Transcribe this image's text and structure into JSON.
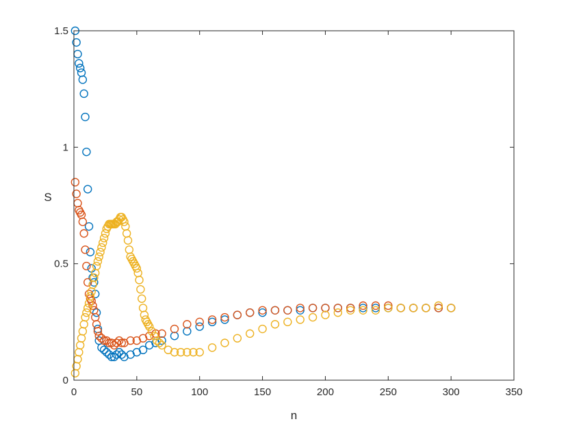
{
  "chart_data": {
    "type": "scatter",
    "title": "",
    "xlabel": "n",
    "ylabel": "S",
    "xlim": [
      0,
      350
    ],
    "ylim": [
      0,
      1.5
    ],
    "xticks": [
      0,
      50,
      100,
      150,
      200,
      250,
      300,
      350
    ],
    "xtick_labels": [
      "0",
      "50",
      "100",
      "150",
      "200",
      "250",
      "300",
      "350"
    ],
    "yticks": [
      0,
      0.5,
      1,
      1.5
    ],
    "ytick_labels": [
      "0",
      "0.5",
      "1",
      "1.5"
    ],
    "grid": false,
    "marker": "open-circle",
    "series": [
      {
        "color": "#0072BD",
        "x": [
          1,
          2,
          3,
          4,
          5,
          6,
          7,
          8,
          9,
          10,
          11,
          12,
          13,
          14,
          15,
          16,
          17,
          18,
          19,
          20,
          22,
          24,
          26,
          28,
          30,
          32,
          34,
          36,
          38,
          40,
          45,
          50,
          55,
          60,
          65,
          70,
          80,
          90,
          100,
          110,
          120,
          130,
          140,
          150,
          160,
          170,
          180,
          190,
          200,
          210,
          220,
          230,
          240,
          250,
          260,
          270,
          280,
          290,
          300
        ],
        "y": [
          1.5,
          1.45,
          1.4,
          1.36,
          1.34,
          1.32,
          1.29,
          1.23,
          1.13,
          0.98,
          0.82,
          0.66,
          0.55,
          0.48,
          0.44,
          0.42,
          0.37,
          0.29,
          0.22,
          0.17,
          0.14,
          0.13,
          0.12,
          0.11,
          0.1,
          0.1,
          0.11,
          0.12,
          0.11,
          0.1,
          0.11,
          0.12,
          0.13,
          0.15,
          0.16,
          0.17,
          0.19,
          0.21,
          0.23,
          0.25,
          0.26,
          0.28,
          0.29,
          0.29,
          0.3,
          0.3,
          0.3,
          0.31,
          0.31,
          0.31,
          0.31,
          0.31,
          0.31,
          0.31,
          0.31,
          0.31,
          0.31,
          0.31,
          0.31
        ]
      },
      {
        "color": "#D95319",
        "x": [
          1,
          2,
          3,
          4,
          5,
          6,
          7,
          8,
          9,
          10,
          11,
          12,
          13,
          14,
          15,
          16,
          17,
          18,
          19,
          20,
          22,
          24,
          26,
          28,
          30,
          32,
          34,
          36,
          38,
          40,
          45,
          50,
          55,
          60,
          65,
          70,
          80,
          90,
          100,
          110,
          120,
          130,
          140,
          150,
          160,
          170,
          180,
          190,
          200,
          210,
          220,
          230,
          240,
          250,
          260,
          270,
          280,
          290,
          300
        ],
        "y": [
          0.85,
          0.8,
          0.76,
          0.73,
          0.72,
          0.71,
          0.68,
          0.63,
          0.56,
          0.49,
          0.42,
          0.37,
          0.35,
          0.34,
          0.32,
          0.3,
          0.27,
          0.24,
          0.21,
          0.19,
          0.18,
          0.17,
          0.17,
          0.16,
          0.16,
          0.15,
          0.16,
          0.17,
          0.16,
          0.16,
          0.17,
          0.17,
          0.18,
          0.19,
          0.2,
          0.2,
          0.22,
          0.24,
          0.25,
          0.26,
          0.27,
          0.28,
          0.29,
          0.3,
          0.3,
          0.3,
          0.31,
          0.31,
          0.31,
          0.31,
          0.31,
          0.32,
          0.32,
          0.32,
          0.31,
          0.31,
          0.31,
          0.31,
          0.31
        ]
      },
      {
        "color": "#EDB120",
        "x": [
          1,
          2,
          3,
          4,
          5,
          6,
          7,
          8,
          9,
          10,
          11,
          12,
          13,
          14,
          15,
          16,
          17,
          18,
          19,
          20,
          21,
          22,
          23,
          24,
          25,
          26,
          27,
          28,
          29,
          30,
          31,
          32,
          33,
          34,
          35,
          36,
          37,
          38,
          39,
          40,
          41,
          42,
          43,
          44,
          45,
          46,
          47,
          48,
          49,
          50,
          51,
          52,
          53,
          54,
          55,
          56,
          57,
          58,
          59,
          60,
          62,
          64,
          66,
          68,
          70,
          75,
          80,
          85,
          90,
          95,
          100,
          110,
          120,
          130,
          140,
          150,
          160,
          170,
          180,
          190,
          200,
          210,
          220,
          230,
          240,
          250,
          260,
          270,
          280,
          290,
          300
        ],
        "y": [
          0.03,
          0.06,
          0.09,
          0.12,
          0.15,
          0.18,
          0.21,
          0.24,
          0.27,
          0.29,
          0.31,
          0.33,
          0.36,
          0.38,
          0.41,
          0.44,
          0.46,
          0.49,
          0.51,
          0.53,
          0.55,
          0.57,
          0.59,
          0.61,
          0.63,
          0.65,
          0.66,
          0.67,
          0.67,
          0.67,
          0.67,
          0.67,
          0.67,
          0.68,
          0.68,
          0.69,
          0.7,
          0.7,
          0.69,
          0.68,
          0.66,
          0.63,
          0.6,
          0.56,
          0.53,
          0.52,
          0.51,
          0.5,
          0.49,
          0.48,
          0.46,
          0.43,
          0.39,
          0.35,
          0.31,
          0.28,
          0.26,
          0.25,
          0.24,
          0.23,
          0.21,
          0.19,
          0.17,
          0.16,
          0.15,
          0.13,
          0.12,
          0.12,
          0.12,
          0.12,
          0.12,
          0.14,
          0.16,
          0.18,
          0.2,
          0.22,
          0.24,
          0.25,
          0.26,
          0.27,
          0.28,
          0.29,
          0.3,
          0.3,
          0.3,
          0.31,
          0.31,
          0.31,
          0.31,
          0.32,
          0.31
        ]
      }
    ]
  }
}
